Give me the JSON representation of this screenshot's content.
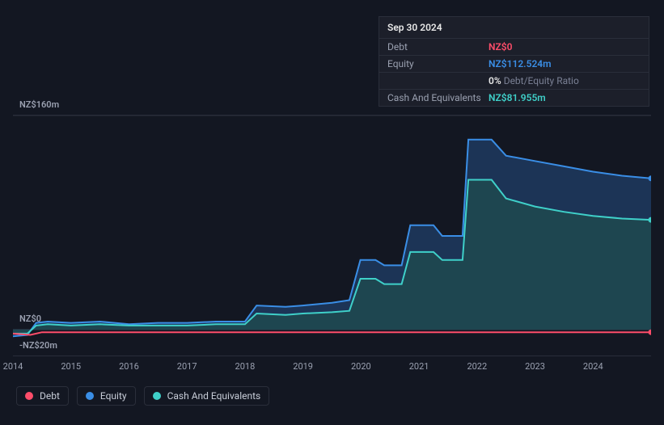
{
  "tooltip": {
    "date": "Sep 30 2024",
    "rows": [
      {
        "label": "Debt",
        "value": "NZ$0",
        "cls": "debt"
      },
      {
        "label": "Equity",
        "value": "NZ$112.524m",
        "cls": "equity"
      },
      {
        "label": "",
        "ratio_pct": "0%",
        "ratio_lbl": " Debt/Equity Ratio",
        "cls": "ratio"
      },
      {
        "label": "Cash And Equivalents",
        "value": "NZ$81.955m",
        "cls": "cash"
      }
    ]
  },
  "chart": {
    "type": "area",
    "background": "#131722",
    "grid_color": "#2a2e3a",
    "ylim": [
      -20,
      160
    ],
    "yticks": [
      {
        "v": 160,
        "label": "NZ$160m"
      },
      {
        "v": 0,
        "label": "NZ$0"
      },
      {
        "v": -20,
        "label": "-NZ$20m"
      }
    ],
    "x_start": 2014,
    "x_end": 2025,
    "x_years": [
      2014,
      2015,
      2016,
      2017,
      2018,
      2019,
      2020,
      2021,
      2022,
      2023,
      2024
    ],
    "series": {
      "equity": {
        "color": "#3a8ee6",
        "fill": "#1e3a5f",
        "points": [
          [
            2014.0,
            -5
          ],
          [
            2014.25,
            -4
          ],
          [
            2014.4,
            5
          ],
          [
            2014.6,
            6
          ],
          [
            2015.0,
            5
          ],
          [
            2015.5,
            6
          ],
          [
            2016.0,
            4
          ],
          [
            2016.5,
            5
          ],
          [
            2017.0,
            5
          ],
          [
            2017.5,
            6
          ],
          [
            2018.0,
            6
          ],
          [
            2018.2,
            18
          ],
          [
            2018.7,
            17
          ],
          [
            2019.0,
            18
          ],
          [
            2019.5,
            20
          ],
          [
            2019.8,
            22
          ],
          [
            2019.99,
            52
          ],
          [
            2020.25,
            52
          ],
          [
            2020.4,
            48
          ],
          [
            2020.7,
            48
          ],
          [
            2020.85,
            78
          ],
          [
            2021.25,
            78
          ],
          [
            2021.4,
            70
          ],
          [
            2021.75,
            70
          ],
          [
            2021.85,
            142
          ],
          [
            2022.25,
            142
          ],
          [
            2022.5,
            130
          ],
          [
            2023.0,
            126
          ],
          [
            2023.5,
            122
          ],
          [
            2024.0,
            118
          ],
          [
            2024.5,
            115
          ],
          [
            2025.0,
            113
          ]
        ]
      },
      "cash": {
        "color": "#3fd0c9",
        "fill": "#1e4a4f",
        "points": [
          [
            2014.0,
            -3
          ],
          [
            2014.25,
            -3
          ],
          [
            2014.4,
            3
          ],
          [
            2014.6,
            4
          ],
          [
            2015.0,
            3
          ],
          [
            2015.5,
            4
          ],
          [
            2016.0,
            3
          ],
          [
            2016.5,
            3
          ],
          [
            2017.0,
            3
          ],
          [
            2017.5,
            4
          ],
          [
            2018.0,
            4
          ],
          [
            2018.2,
            12
          ],
          [
            2018.7,
            11
          ],
          [
            2019.0,
            12
          ],
          [
            2019.5,
            13
          ],
          [
            2019.8,
            14
          ],
          [
            2019.99,
            38
          ],
          [
            2020.25,
            38
          ],
          [
            2020.4,
            34
          ],
          [
            2020.7,
            34
          ],
          [
            2020.85,
            58
          ],
          [
            2021.25,
            58
          ],
          [
            2021.4,
            52
          ],
          [
            2021.75,
            52
          ],
          [
            2021.85,
            112
          ],
          [
            2022.25,
            112
          ],
          [
            2022.5,
            98
          ],
          [
            2023.0,
            92
          ],
          [
            2023.5,
            88
          ],
          [
            2024.0,
            85
          ],
          [
            2024.5,
            83
          ],
          [
            2025.0,
            82
          ]
        ]
      },
      "debt": {
        "color": "#ff4d6a",
        "points": [
          [
            2014.0,
            -3
          ],
          [
            2014.3,
            -4
          ],
          [
            2014.5,
            -2
          ],
          [
            2015.0,
            -2
          ],
          [
            2016.0,
            -2
          ],
          [
            2017.0,
            -2
          ],
          [
            2018.0,
            -2
          ],
          [
            2019.0,
            -2
          ],
          [
            2020.0,
            -2
          ],
          [
            2021.0,
            -2
          ],
          [
            2022.0,
            -2
          ],
          [
            2023.0,
            -2
          ],
          [
            2024.0,
            -2
          ],
          [
            2025.0,
            -2
          ]
        ]
      }
    }
  },
  "legend": [
    {
      "label": "Debt",
      "color": "#ff4d6a"
    },
    {
      "label": "Equity",
      "color": "#3a8ee6"
    },
    {
      "label": "Cash And Equivalents",
      "color": "#3fd0c9"
    }
  ]
}
